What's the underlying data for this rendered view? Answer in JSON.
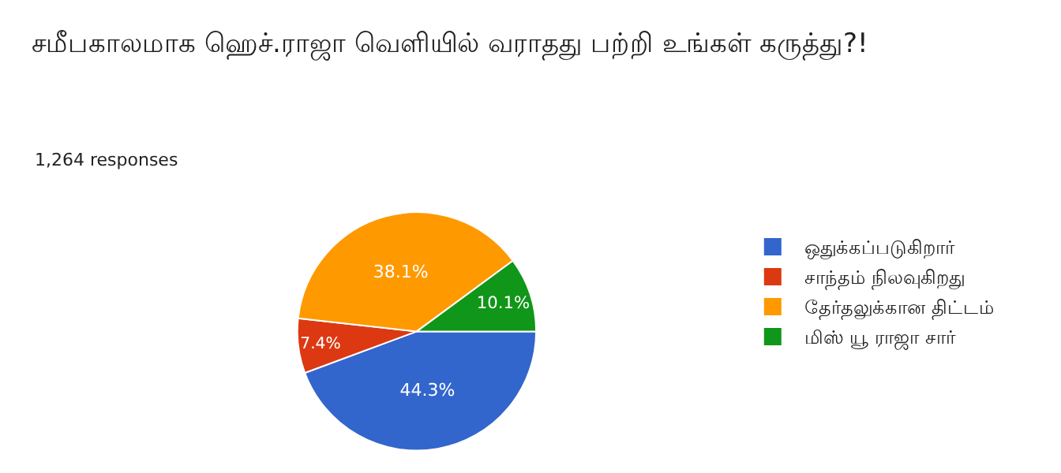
{
  "chart_data": {
    "type": "pie",
    "title": "சமீபகாலமாக ஹெச்.ராஜா வெளியில் வராதது பற்றி உங்கள் கருத்து?!",
    "subtitle": "1,264 responses",
    "categories": [
      "ஒதுக்கப்படுகிறார்",
      "சாந்தம் நிலவுகிறது",
      "தேர்தலுக்கான திட்டம்",
      "மிஸ் யூ ராஜா சார்"
    ],
    "values": [
      44.3,
      7.4,
      38.1,
      10.1
    ],
    "colors": [
      "#3366cc",
      "#dc3912",
      "#ff9900",
      "#109618"
    ],
    "value_labels": [
      "44.3%",
      "7.4%",
      "38.1%",
      "10.1%"
    ],
    "legend": "right"
  }
}
